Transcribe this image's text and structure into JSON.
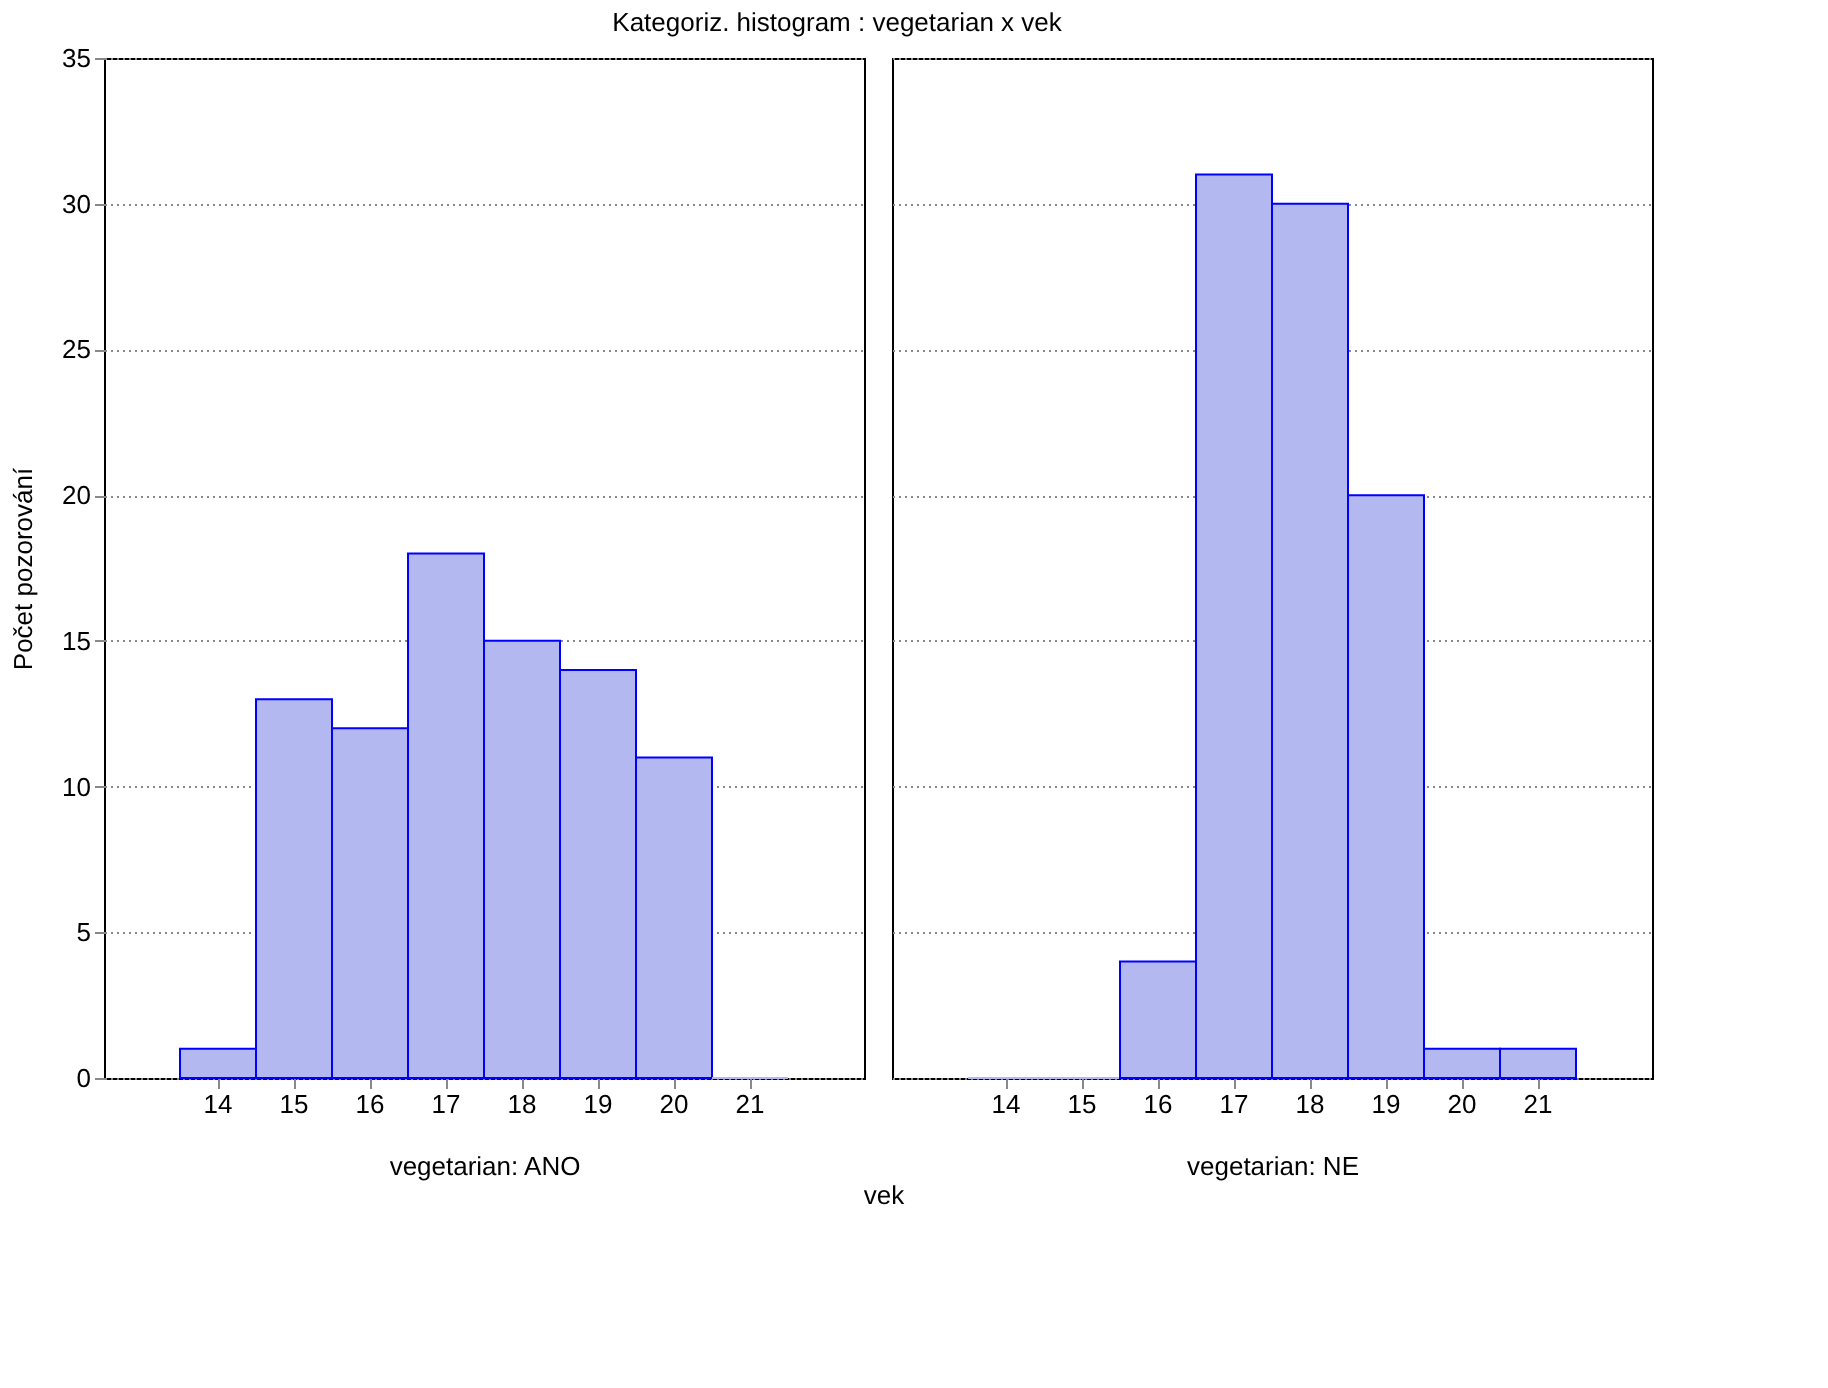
{
  "chart_data": [
    {
      "type": "bar",
      "title": "Kategoriz. histogram : vegetarian x vek",
      "xlabel": "vegetarian: ANO",
      "ylabel": "Počet pozorování",
      "annotations": [
        "vek"
      ],
      "categories": [
        "14",
        "15",
        "16",
        "17",
        "18",
        "19",
        "20",
        "21"
      ],
      "values": [
        1,
        13,
        12,
        18,
        15,
        14,
        11,
        0
      ],
      "color": "#b4b8f0",
      "ylim": [
        0,
        35
      ],
      "yticks": [
        0,
        5,
        10,
        15,
        20,
        25,
        30,
        35
      ],
      "grid": "y"
    },
    {
      "type": "bar",
      "xlabel": "vegetarian: NE",
      "categories": [
        "14",
        "15",
        "16",
        "17",
        "18",
        "19",
        "20",
        "21"
      ],
      "values": [
        0,
        0,
        4,
        31,
        30,
        20,
        1,
        1
      ],
      "color": "#b4b8f0",
      "ylim": [
        0,
        35
      ],
      "yticks": [
        0,
        5,
        10,
        15,
        20,
        25,
        30,
        35
      ],
      "grid": "y",
      "tick_labels": "x"
    }
  ]
}
